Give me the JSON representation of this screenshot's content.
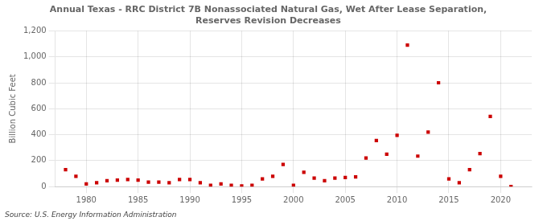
{
  "chart_data": {
    "type": "scatter",
    "title": [
      "Annual Texas - RRC District 7B Nonassociated Natural Gas, Wet After Lease Separation,",
      "Reserves Revision Decreases"
    ],
    "ylabel": "Billion Cubic Feet",
    "annotation": "Source: U.S. Energy Information Administration",
    "x": [
      1978,
      1979,
      1980,
      1981,
      1982,
      1983,
      1984,
      1985,
      1986,
      1987,
      1988,
      1989,
      1990,
      1991,
      1992,
      1993,
      1994,
      1995,
      1996,
      1997,
      1998,
      1999,
      2000,
      2001,
      2002,
      2003,
      2004,
      2005,
      2006,
      2007,
      2008,
      2009,
      2010,
      2011,
      2012,
      2013,
      2014,
      2015,
      2016,
      2017,
      2018,
      2019,
      2020,
      2021
    ],
    "values": [
      130,
      80,
      20,
      30,
      45,
      50,
      55,
      50,
      35,
      35,
      30,
      55,
      55,
      30,
      10,
      20,
      10,
      5,
      10,
      60,
      80,
      170,
      10,
      110,
      65,
      45,
      65,
      70,
      75,
      220,
      355,
      250,
      395,
      1090,
      235,
      420,
      800,
      60,
      30,
      130,
      255,
      540,
      80,
      0
    ],
    "color": "#cc0000",
    "marker": "square",
    "xlim": [
      1977,
      2023
    ],
    "xticks": [
      1980,
      1985,
      1990,
      1995,
      2000,
      2005,
      2010,
      2015,
      2020
    ],
    "ylim": [
      0,
      1200
    ],
    "yticks": [
      0,
      200,
      400,
      600,
      800,
      {
        "value": 1000,
        "label": "1,000"
      },
      {
        "value": 1200,
        "label": "1,200"
      }
    ],
    "grid": true
  }
}
